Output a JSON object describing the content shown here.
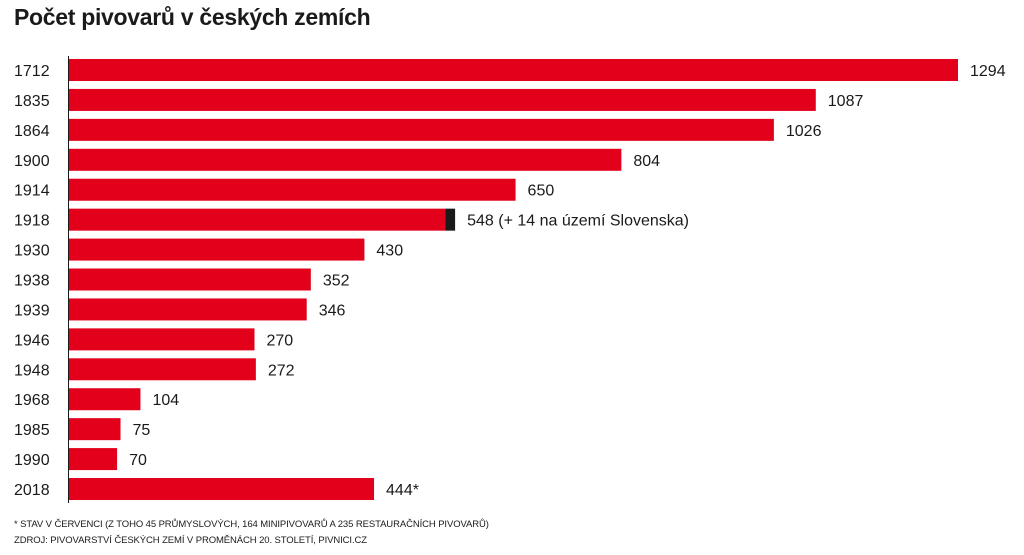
{
  "chart_data": {
    "type": "bar",
    "orientation": "horizontal",
    "title": "Počet pivovarů v českých zemích",
    "categories": [
      "1712",
      "1835",
      "1864",
      "1900",
      "1914",
      "1918",
      "1930",
      "1938",
      "1939",
      "1946",
      "1948",
      "1968",
      "1985",
      "1990",
      "2018"
    ],
    "values": [
      1294,
      1087,
      1026,
      804,
      650,
      548,
      430,
      352,
      346,
      270,
      272,
      104,
      75,
      70,
      444
    ],
    "extra_segment": {
      "category": "1918",
      "value": 14,
      "color": "#1a1a1a"
    },
    "data_labels": [
      "1294",
      "1087",
      "1026",
      "804",
      "650",
      "548 (+ 14 na území Slovenska)",
      "430",
      "352",
      "346",
      "270",
      "272",
      "104",
      "75",
      "70",
      "444*"
    ],
    "bar_color": "#e2001a",
    "xlim": [
      0,
      1294
    ],
    "grid": false
  },
  "footnotes": {
    "note": "* STAV V ČERVENCI (Z TOHO 45 PRŮMYSLOVÝCH, 164 MINIPIVOVARŮ A 235 RESTAURAČNÍCH PIVOVARŮ)",
    "source": "ZDROJ: PIVOVARSTVÍ ČESKÝCH ZEMÍ V PROMĚNÁCH 20. STOLETÍ, PIVNICI.CZ"
  }
}
